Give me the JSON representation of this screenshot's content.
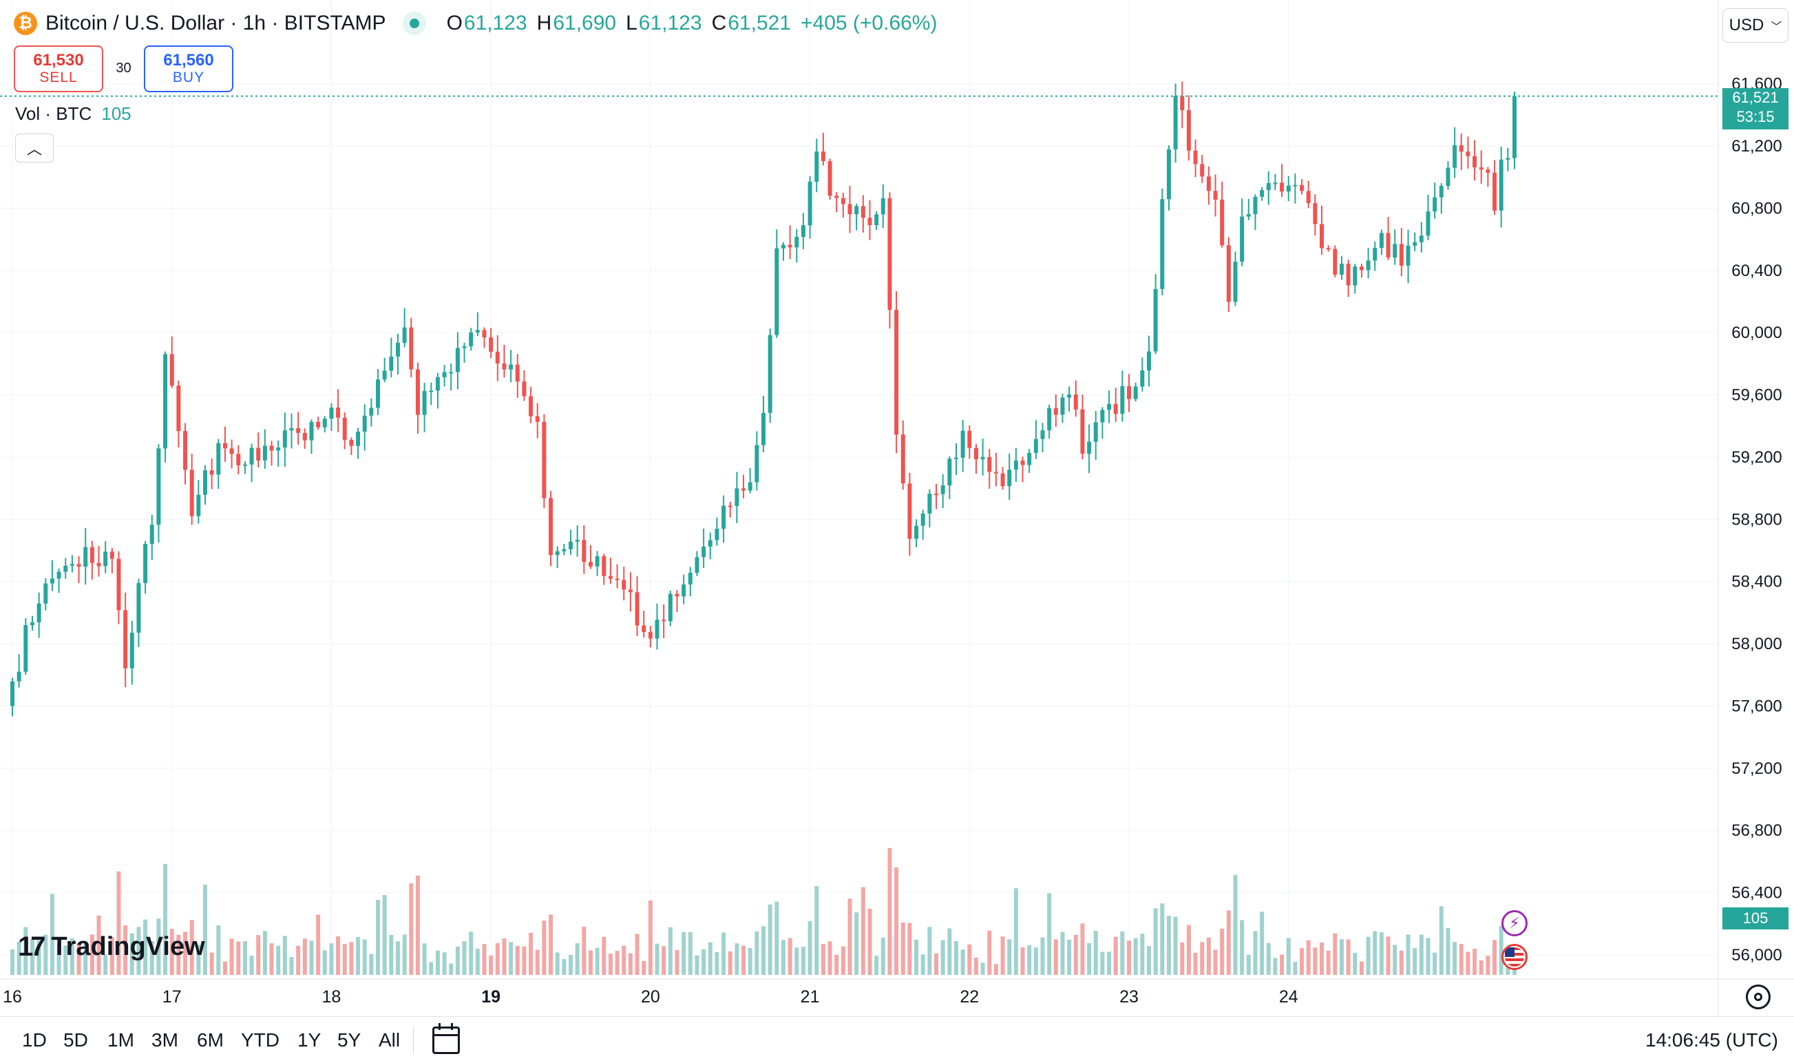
{
  "header": {
    "symbol_title": "Bitcoin / U.S. Dollar · 1h · BITSTAMP",
    "ohlc": [
      {
        "k": "O",
        "v": "61,123"
      },
      {
        "k": "H",
        "v": "61,690"
      },
      {
        "k": "L",
        "v": "61,123"
      },
      {
        "k": "C",
        "v": "61,521"
      }
    ],
    "change": "+405 (+0.66%)"
  },
  "trade": {
    "sell_price": "61,530",
    "sell_label": "SELL",
    "spread": "30",
    "buy_price": "61,560",
    "buy_label": "BUY"
  },
  "volume_legend": {
    "label": "Vol · BTC",
    "value": "105"
  },
  "currency": "USD",
  "last_price": {
    "price": "61,521",
    "countdown": "53:15"
  },
  "volume_tag": "105",
  "brand": "TradingView",
  "time_ranges": [
    "1D",
    "5D",
    "1M",
    "3M",
    "6M",
    "YTD",
    "1Y",
    "5Y",
    "All"
  ],
  "clock": "14:06:45 (UTC)",
  "colors": {
    "up": "#26a69a",
    "down": "#ef5350",
    "up_vol": "#9fd2ce",
    "down_vol": "#f2a7a5",
    "grid": "#f0f3fa"
  },
  "icons": {
    "collapse": "chevron-up-icon",
    "events": [
      "lightning-icon",
      "us-flag-icon"
    ],
    "settings": "gear-icon",
    "compare": "calendar-compare-icon"
  },
  "chart_data": {
    "type": "candlestick",
    "interval": "1h",
    "y_ticks": [
      56000,
      56400,
      56800,
      57200,
      57600,
      58000,
      58400,
      58800,
      59200,
      59600,
      60000,
      60400,
      60800,
      61200,
      61600
    ],
    "y_tick_labels": [
      "56,000",
      "56,400",
      "56,800",
      "57,200",
      "57,600",
      "58,000",
      "58,400",
      "58,800",
      "59,200",
      "59,600",
      "60,000",
      "60,400",
      "60,800",
      "61,200",
      "61,600"
    ],
    "x_labels": [
      "16",
      "17",
      "18",
      "19",
      "20",
      "21",
      "22",
      "23",
      "24"
    ],
    "x_label_bold": "19",
    "last_close": 61521,
    "keypoints": [
      {
        "t": 0,
        "p": 57600
      },
      {
        "t": 4,
        "p": 58200
      },
      {
        "t": 8,
        "p": 58500
      },
      {
        "t": 12,
        "p": 58600
      },
      {
        "t": 16,
        "p": 58550
      },
      {
        "t": 18,
        "p": 57900
      },
      {
        "t": 22,
        "p": 58800
      },
      {
        "t": 24,
        "p": 59850
      },
      {
        "t": 28,
        "p": 58900
      },
      {
        "t": 32,
        "p": 59250
      },
      {
        "t": 36,
        "p": 59200
      },
      {
        "t": 40,
        "p": 59300
      },
      {
        "t": 44,
        "p": 59350
      },
      {
        "t": 48,
        "p": 59500
      },
      {
        "t": 52,
        "p": 59350
      },
      {
        "t": 56,
        "p": 59650
      },
      {
        "t": 60,
        "p": 60100
      },
      {
        "t": 62,
        "p": 59500
      },
      {
        "t": 66,
        "p": 59700
      },
      {
        "t": 70,
        "p": 60000
      },
      {
        "t": 74,
        "p": 59800
      },
      {
        "t": 78,
        "p": 59650
      },
      {
        "t": 80,
        "p": 59400
      },
      {
        "t": 82,
        "p": 58600
      },
      {
        "t": 86,
        "p": 58600
      },
      {
        "t": 90,
        "p": 58500
      },
      {
        "t": 94,
        "p": 58300
      },
      {
        "t": 96,
        "p": 58000
      },
      {
        "t": 100,
        "p": 58300
      },
      {
        "t": 104,
        "p": 58500
      },
      {
        "t": 108,
        "p": 58900
      },
      {
        "t": 112,
        "p": 59000
      },
      {
        "t": 114,
        "p": 59500
      },
      {
        "t": 116,
        "p": 60500
      },
      {
        "t": 120,
        "p": 60700
      },
      {
        "t": 122,
        "p": 61100
      },
      {
        "t": 126,
        "p": 60800
      },
      {
        "t": 130,
        "p": 60700
      },
      {
        "t": 132,
        "p": 60900
      },
      {
        "t": 134,
        "p": 59400
      },
      {
        "t": 136,
        "p": 58700
      },
      {
        "t": 140,
        "p": 59000
      },
      {
        "t": 144,
        "p": 59300
      },
      {
        "t": 148,
        "p": 59100
      },
      {
        "t": 150,
        "p": 59000
      },
      {
        "t": 154,
        "p": 59300
      },
      {
        "t": 158,
        "p": 59500
      },
      {
        "t": 160,
        "p": 59650
      },
      {
        "t": 162,
        "p": 59300
      },
      {
        "t": 166,
        "p": 59500
      },
      {
        "t": 170,
        "p": 59700
      },
      {
        "t": 172,
        "p": 59900
      },
      {
        "t": 174,
        "p": 60800
      },
      {
        "t": 176,
        "p": 61600
      },
      {
        "t": 178,
        "p": 61200
      },
      {
        "t": 182,
        "p": 60900
      },
      {
        "t": 184,
        "p": 60250
      },
      {
        "t": 186,
        "p": 60700
      },
      {
        "t": 190,
        "p": 60900
      },
      {
        "t": 194,
        "p": 61000
      },
      {
        "t": 196,
        "p": 60800
      },
      {
        "t": 198,
        "p": 60600
      },
      {
        "t": 202,
        "p": 60300
      },
      {
        "t": 206,
        "p": 60600
      },
      {
        "t": 210,
        "p": 60500
      },
      {
        "t": 214,
        "p": 60750
      },
      {
        "t": 218,
        "p": 61200
      },
      {
        "t": 222,
        "p": 61100
      },
      {
        "t": 224,
        "p": 60800
      },
      {
        "t": 226,
        "p": 61521
      }
    ]
  }
}
